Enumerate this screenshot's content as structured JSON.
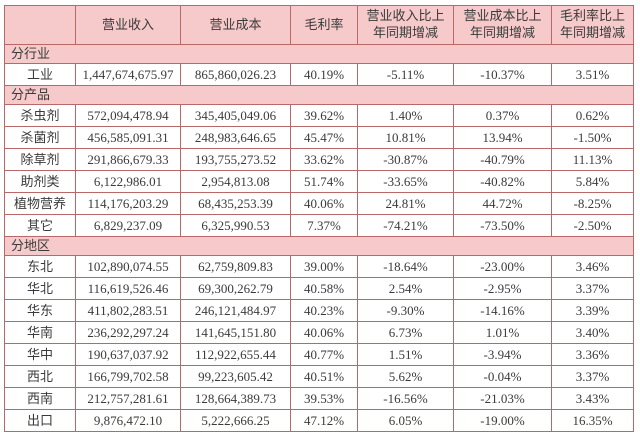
{
  "table": {
    "columns": [
      "",
      "营业收入",
      "营业成本",
      "毛利率",
      "营业收入比上\n年同期增减",
      "营业成本比上\n年同期增减",
      "毛利率比上\n年同期增减"
    ],
    "sections": [
      {
        "title": "分行业",
        "rows": [
          [
            "工业",
            "1,447,674,675.97",
            "865,860,026.23",
            "40.19%",
            "-5.11%",
            "-10.37%",
            "3.51%"
          ]
        ]
      },
      {
        "title": "分产品",
        "rows": [
          [
            "杀虫剂",
            "572,094,478.94",
            "345,405,049.06",
            "39.62%",
            "1.40%",
            "0.37%",
            "0.62%"
          ],
          [
            "杀菌剂",
            "456,585,091.31",
            "248,983,646.65",
            "45.47%",
            "10.81%",
            "13.94%",
            "-1.50%"
          ],
          [
            "除草剂",
            "291,866,679.33",
            "193,755,273.52",
            "33.62%",
            "-30.87%",
            "-40.79%",
            "11.13%"
          ],
          [
            "助剂类",
            "6,122,986.01",
            "2,954,813.08",
            "51.74%",
            "-33.65%",
            "-40.82%",
            "5.84%"
          ],
          [
            "植物营养",
            "114,176,203.29",
            "68,435,253.39",
            "40.06%",
            "24.81%",
            "44.72%",
            "-8.25%"
          ],
          [
            "其它",
            "6,829,237.09",
            "6,325,990.53",
            "7.37%",
            "-74.21%",
            "-73.50%",
            "-2.50%"
          ]
        ]
      },
      {
        "title": "分地区",
        "rows": [
          [
            "东北",
            "102,890,074.55",
            "62,759,809.83",
            "39.00%",
            "-18.64%",
            "-23.00%",
            "3.46%"
          ],
          [
            "华北",
            "116,619,526.46",
            "69,300,262.79",
            "40.58%",
            "2.54%",
            "-2.95%",
            "3.37%"
          ],
          [
            "华东",
            "411,802,283.51",
            "246,121,484.97",
            "40.23%",
            "-9.30%",
            "-14.16%",
            "3.39%"
          ],
          [
            "华南",
            "236,292,297.24",
            "141,645,151.80",
            "40.06%",
            "6.73%",
            "1.01%",
            "3.40%"
          ],
          [
            "华中",
            "190,637,037.92",
            "112,922,655.44",
            "40.77%",
            "1.51%",
            "-3.94%",
            "3.36%"
          ],
          [
            "西北",
            "166,799,702.58",
            "99,223,605.42",
            "40.51%",
            "5.62%",
            "-0.04%",
            "3.37%"
          ],
          [
            "西南",
            "212,757,281.61",
            "128,664,389.73",
            "39.53%",
            "-16.56%",
            "-21.03%",
            "3.43%"
          ],
          [
            "出口",
            "9,876,472.10",
            "5,222,666.25",
            "47.12%",
            "6.05%",
            "-19.00%",
            "16.35%"
          ]
        ]
      }
    ]
  },
  "colors": {
    "header_background": "#f6caca",
    "section_background": "#f6caca",
    "border": "#b76868",
    "text": "#3a3a3a",
    "cell_background": "#ffffff"
  }
}
